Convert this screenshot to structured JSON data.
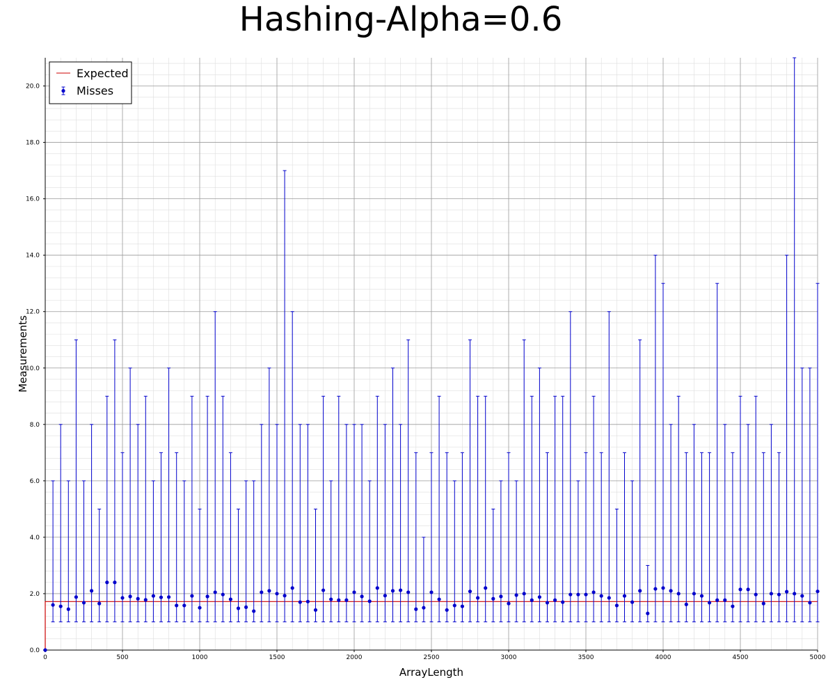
{
  "chart_data": {
    "type": "scatter",
    "title": "Hashing-Alpha=0.6",
    "xlabel": "ArrayLength",
    "ylabel": "Measurements",
    "xlim": [
      0,
      5000
    ],
    "ylim": [
      0,
      21
    ],
    "x_ticks": [
      0,
      500,
      1000,
      1500,
      2000,
      2500,
      3000,
      3500,
      4000,
      4500,
      5000
    ],
    "x_tick_labels": [
      "0",
      "500",
      "1000",
      "1500",
      "2000",
      "2500",
      "3000",
      "3500",
      "4000",
      "4500",
      "5000"
    ],
    "y_ticks": [
      0,
      2,
      4,
      6,
      8,
      10,
      12,
      14,
      16,
      18,
      20
    ],
    "y_tick_labels": [
      "0.0",
      "2.0",
      "4.0",
      "6.0",
      "8.0",
      "10.0",
      "12.0",
      "14.0",
      "16.0",
      "18.0",
      "20.0"
    ],
    "grid": true,
    "legend_position": "top-left",
    "colors": {
      "expected": "#cc0000",
      "misses": "#0000cc"
    },
    "series": [
      {
        "name": "Expected",
        "type": "line",
        "x": [
          0,
          0,
          5000
        ],
        "y": [
          0,
          1.72,
          1.72
        ]
      },
      {
        "name": "Misses",
        "type": "errorbar",
        "x": [
          0,
          50,
          100,
          150,
          200,
          250,
          300,
          350,
          400,
          450,
          500,
          550,
          600,
          650,
          700,
          750,
          800,
          850,
          900,
          950,
          1000,
          1050,
          1100,
          1150,
          1200,
          1250,
          1300,
          1350,
          1400,
          1450,
          1500,
          1550,
          1600,
          1650,
          1700,
          1750,
          1800,
          1850,
          1900,
          1950,
          2000,
          2050,
          2100,
          2150,
          2200,
          2250,
          2300,
          2350,
          2400,
          2450,
          2500,
          2550,
          2600,
          2650,
          2700,
          2750,
          2800,
          2850,
          2900,
          2950,
          3000,
          3050,
          3100,
          3150,
          3200,
          3250,
          3300,
          3350,
          3400,
          3450,
          3500,
          3550,
          3600,
          3650,
          3700,
          3750,
          3800,
          3850,
          3900,
          3950,
          4000,
          4050,
          4100,
          4150,
          4200,
          4250,
          4300,
          4350,
          4400,
          4450,
          4500,
          4550,
          4600,
          4650,
          4700,
          4750,
          4800,
          4850,
          4900,
          4950,
          5000
        ],
        "y": [
          0,
          1.6,
          1.55,
          1.45,
          1.88,
          1.68,
          2.1,
          1.65,
          2.4,
          2.4,
          1.85,
          1.9,
          1.82,
          1.78,
          1.92,
          1.87,
          1.88,
          1.58,
          1.58,
          1.92,
          1.5,
          1.9,
          2.05,
          1.97,
          1.8,
          1.48,
          1.52,
          1.38,
          2.05,
          2.1,
          2.0,
          1.93,
          2.2,
          1.7,
          1.72,
          1.42,
          2.12,
          1.8,
          1.77,
          1.77,
          2.05,
          1.9,
          1.73,
          2.2,
          1.93,
          2.1,
          2.12,
          2.05,
          1.45,
          1.5,
          2.05,
          1.8,
          1.42,
          1.58,
          1.55,
          2.08,
          1.85,
          2.2,
          1.82,
          1.9,
          1.65,
          1.95,
          2.0,
          1.77,
          1.88,
          1.68,
          1.77,
          1.7,
          1.97,
          1.97,
          1.97,
          2.05,
          1.92,
          1.85,
          1.58,
          1.92,
          1.7,
          2.1,
          1.3,
          2.17,
          2.2,
          2.1,
          2.0,
          1.62,
          2.0,
          1.92,
          1.68,
          1.77,
          1.77,
          1.55,
          2.15,
          2.15,
          1.97,
          1.65,
          2.0,
          1.97,
          2.07,
          2.0,
          1.92,
          1.68,
          2.08
        ],
        "ymin": [
          0,
          1,
          1,
          1,
          1,
          1,
          1,
          1,
          1,
          1,
          1,
          1,
          1,
          1,
          1,
          1,
          1,
          1,
          1,
          1,
          1,
          1,
          1,
          1,
          1,
          1,
          1,
          1,
          1,
          1,
          1,
          1,
          1,
          1,
          1,
          1,
          1,
          1,
          1,
          1,
          1,
          1,
          1,
          1,
          1,
          1,
          1,
          1,
          1,
          1,
          1,
          1,
          1,
          1,
          1,
          1,
          1,
          1,
          1,
          1,
          1,
          1,
          1,
          1,
          1,
          1,
          1,
          1,
          1,
          1,
          1,
          1,
          1,
          1,
          1,
          1,
          1,
          1,
          1,
          1,
          1,
          1,
          1,
          1,
          1,
          1,
          1,
          1,
          1,
          1,
          1,
          1,
          1,
          1,
          1,
          1,
          1,
          1,
          1,
          1,
          1
        ],
        "ymax": [
          0,
          6,
          8,
          6,
          11,
          6,
          8,
          5,
          9,
          11,
          7,
          10,
          8,
          9,
          6,
          7,
          10,
          7,
          6,
          9,
          5,
          9,
          12,
          9,
          7,
          5,
          6,
          6,
          8,
          10,
          8,
          17,
          12,
          8,
          8,
          5,
          9,
          6,
          9,
          8,
          8,
          8,
          6,
          9,
          8,
          10,
          8,
          11,
          7,
          4,
          7,
          9,
          7,
          6,
          7,
          11,
          9,
          9,
          5,
          6,
          7,
          6,
          11,
          9,
          10,
          7,
          9,
          9,
          12,
          6,
          7,
          9,
          7,
          12,
          5,
          7,
          6,
          11,
          3,
          14,
          13,
          8,
          9,
          7,
          8,
          7,
          7,
          13,
          8,
          7,
          9,
          8,
          9,
          7,
          8,
          7,
          14,
          21,
          10,
          10,
          13
        ]
      }
    ]
  }
}
